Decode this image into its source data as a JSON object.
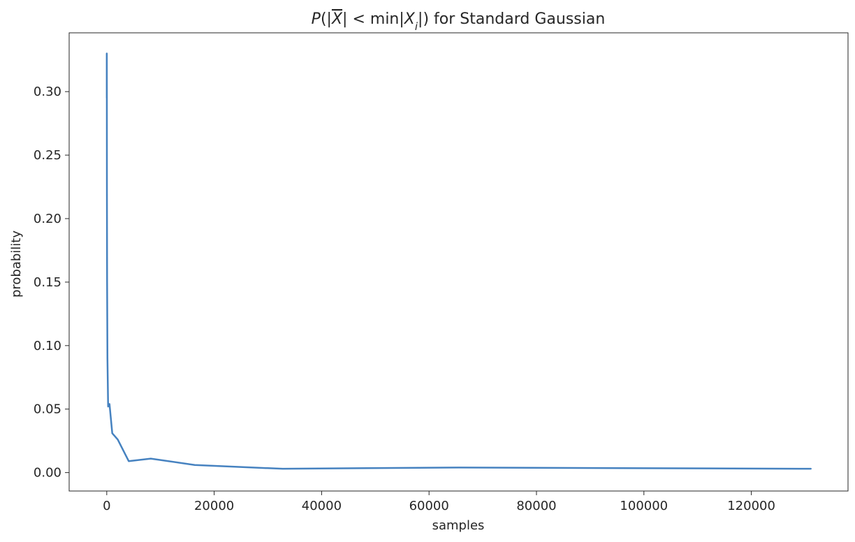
{
  "chart_data": {
    "type": "line",
    "title": {
      "prefix": "P",
      "open_paren": "(",
      "xbar": "X",
      "less_than": " < min",
      "xi": "X",
      "xi_sub": "i",
      "suffix": ") for Standard Gaussian"
    },
    "xlabel": "samples",
    "ylabel": "probability",
    "xlim": [
      -7000,
      138000
    ],
    "ylim": [
      -0.0145,
      0.3463
    ],
    "xticks": [
      0,
      20000,
      40000,
      60000,
      80000,
      100000,
      120000
    ],
    "xtick_labels": [
      "0",
      "20000",
      "40000",
      "60000",
      "80000",
      "100000",
      "120000"
    ],
    "yticks": [
      0.0,
      0.05,
      0.1,
      0.15,
      0.2,
      0.25,
      0.3
    ],
    "ytick_labels": [
      "0.00",
      "0.05",
      "0.10",
      "0.15",
      "0.20",
      "0.25",
      "0.30"
    ],
    "grid": false,
    "series": [
      {
        "color": "#4682c0",
        "x": [
          2,
          4,
          8,
          16,
          32,
          64,
          128,
          256,
          512,
          1024,
          2048,
          4096,
          8192,
          16384,
          32768,
          65536,
          131072
        ],
        "y": [
          0.33,
          0.295,
          0.33,
          0.3,
          0.22,
          0.15,
          0.09,
          0.052,
          0.054,
          0.031,
          0.026,
          0.009,
          0.011,
          0.006,
          0.003,
          0.004,
          0.003
        ]
      }
    ]
  }
}
